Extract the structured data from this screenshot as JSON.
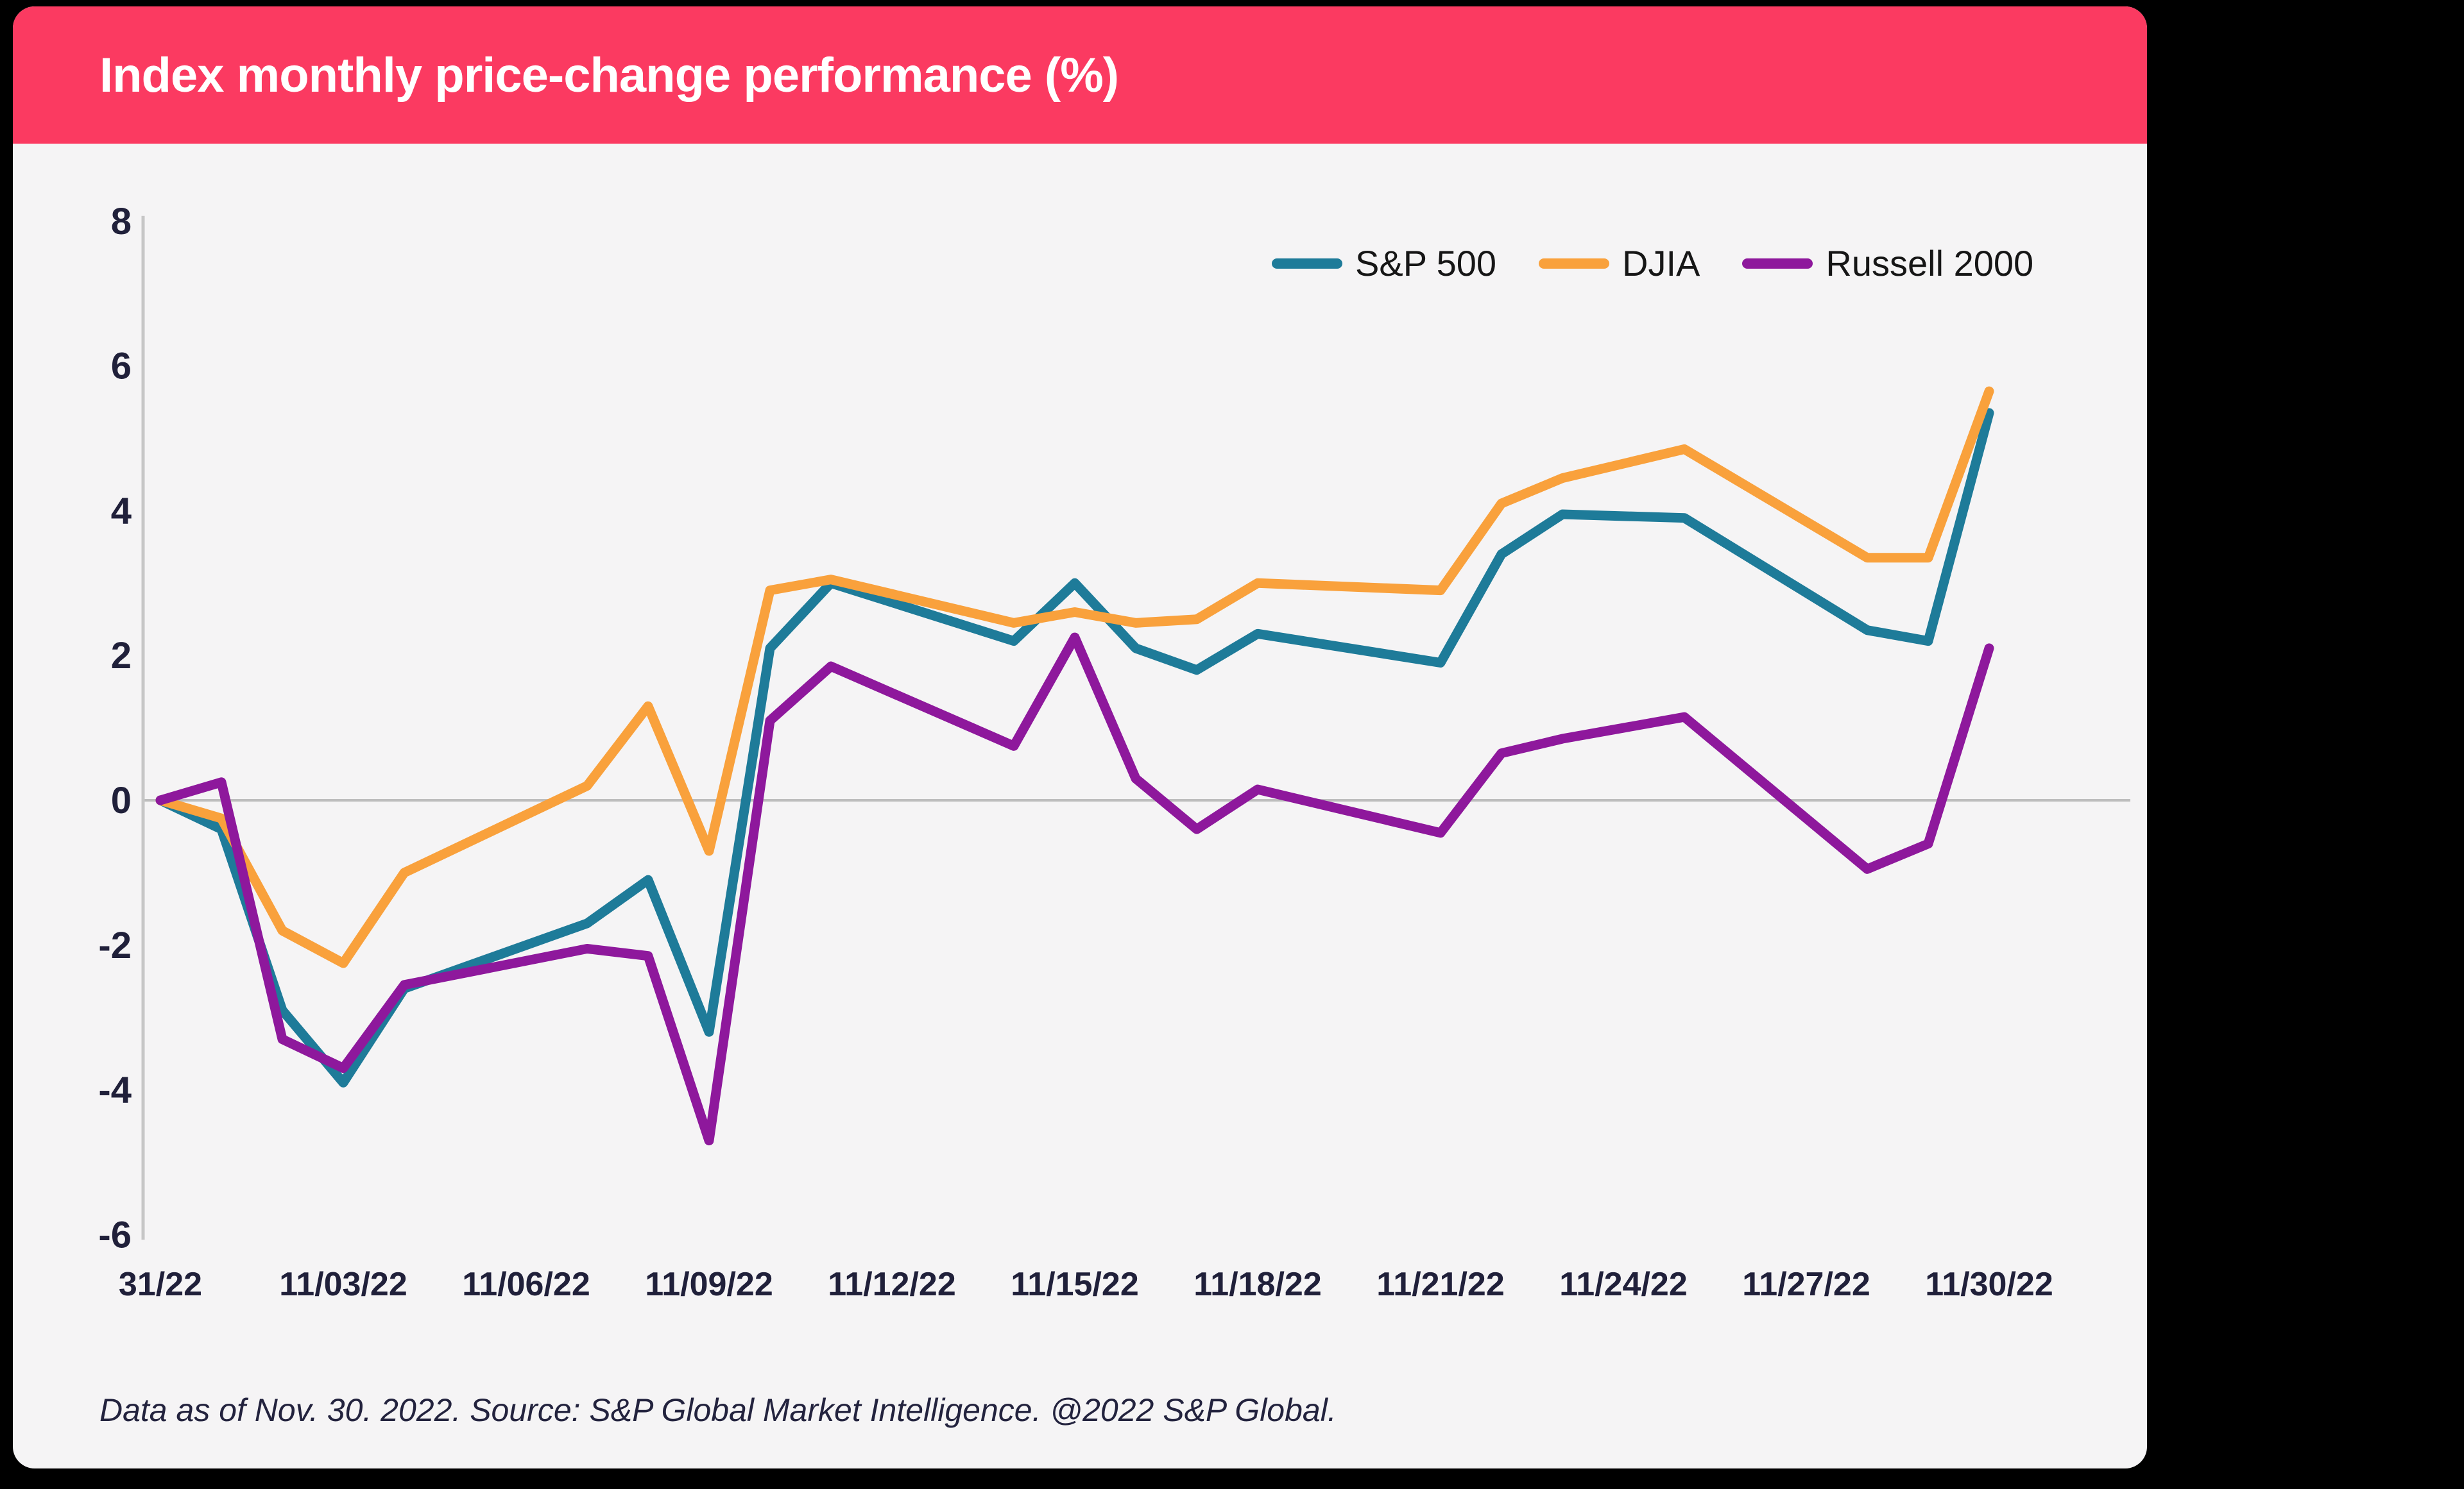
{
  "header": {
    "title": "Index monthly price-change performance (%)",
    "background_color": "#FB3A61",
    "title_color": "#FFFFFF"
  },
  "card": {
    "background_color": "#F5F4F5"
  },
  "page": {
    "background_color": "#000000"
  },
  "footer": {
    "note": "Data as of Nov. 30. 2022. Source: S&P Global Market Intelligence. @2022 S&P Global."
  },
  "legend": {
    "position": "top-right",
    "items": [
      {
        "label": "S&P 500",
        "color": "#1E7B99"
      },
      {
        "label": "DJIA",
        "color": "#F9A13C"
      },
      {
        "label": "Russell 2000",
        "color": "#8E189C"
      }
    ]
  },
  "chart_data": {
    "type": "line",
    "title": "Index monthly price-change performance (%)",
    "xlabel": "",
    "ylabel": "",
    "ylim": [
      -6,
      8
    ],
    "y_ticks": [
      8,
      6,
      4,
      2,
      0,
      -2,
      -4,
      -6
    ],
    "grid": "horizontal zero-line only",
    "axis_color": "#BDBDBD",
    "tick_label_color": "#20203A",
    "legend_position": "top-right",
    "x_tick_labels": [
      "31/22",
      "11/03/22",
      "11/06/22",
      "11/09/22",
      "11/12/22",
      "11/15/22",
      "11/18/22",
      "11/21/22",
      "11/24/22",
      "11/27/22",
      "11/30/22"
    ],
    "x_tick_day_offsets": [
      0,
      3,
      6,
      9,
      12,
      15,
      18,
      21,
      24,
      27,
      30
    ],
    "dates": [
      "10/31/22",
      "11/01/22",
      "11/02/22",
      "11/03/22",
      "11/04/22",
      "11/07/22",
      "11/08/22",
      "11/09/22",
      "11/10/22",
      "11/11/22",
      "11/14/22",
      "11/15/22",
      "11/16/22",
      "11/17/22",
      "11/18/22",
      "11/21/22",
      "11/22/22",
      "11/23/22",
      "11/25/22",
      "11/28/22",
      "11/29/22",
      "11/30/22"
    ],
    "day_offsets": [
      0,
      1,
      2,
      3,
      4,
      7,
      8,
      9,
      10,
      11,
      14,
      15,
      16,
      17,
      18,
      21,
      22,
      23,
      25,
      28,
      29,
      30
    ],
    "series": [
      {
        "name": "S&P 500",
        "color": "#1E7B99",
        "values": [
          0,
          -0.4,
          -2.9,
          -3.9,
          -2.6,
          -1.7,
          -1.1,
          -3.2,
          2.1,
          3.0,
          2.2,
          3.0,
          2.1,
          1.8,
          2.3,
          1.9,
          3.4,
          3.95,
          3.9,
          2.35,
          2.2,
          5.35
        ]
      },
      {
        "name": "DJIA",
        "color": "#F9A13C",
        "values": [
          0,
          -0.25,
          -1.8,
          -2.25,
          -1.0,
          0.2,
          1.3,
          -0.7,
          2.9,
          3.05,
          2.45,
          2.6,
          2.45,
          2.5,
          3.0,
          2.9,
          4.1,
          4.45,
          4.85,
          3.35,
          3.35,
          5.65
        ]
      },
      {
        "name": "Russell 2000",
        "color": "#8E189C",
        "values": [
          0,
          0.25,
          -3.3,
          -3.7,
          -2.55,
          -2.05,
          -2.15,
          -4.7,
          1.1,
          1.85,
          0.75,
          2.25,
          0.3,
          -0.4,
          0.15,
          -0.45,
          0.65,
          0.85,
          1.15,
          -0.95,
          -0.6,
          2.1
        ]
      }
    ]
  }
}
